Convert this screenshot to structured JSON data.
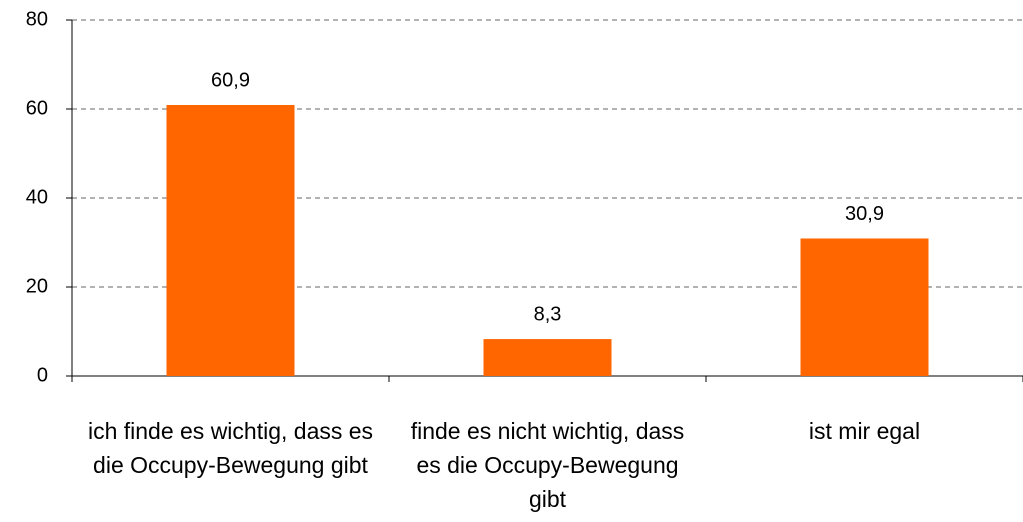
{
  "chart_data": {
    "type": "bar",
    "categories": [
      "ich finde es wichtig, dass es die Occupy-Bewegung gibt",
      "finde es nicht wichtig, dass es die Occupy-Bewegung gibt",
      "ist mir egal"
    ],
    "values": [
      60.9,
      8.3,
      30.9
    ],
    "value_labels": [
      "60,9",
      "8,3",
      "30,9"
    ],
    "color": "#ff6600",
    "ylim": [
      0,
      80
    ],
    "yticks": [
      0,
      20,
      40,
      60,
      80
    ],
    "grid": true
  }
}
